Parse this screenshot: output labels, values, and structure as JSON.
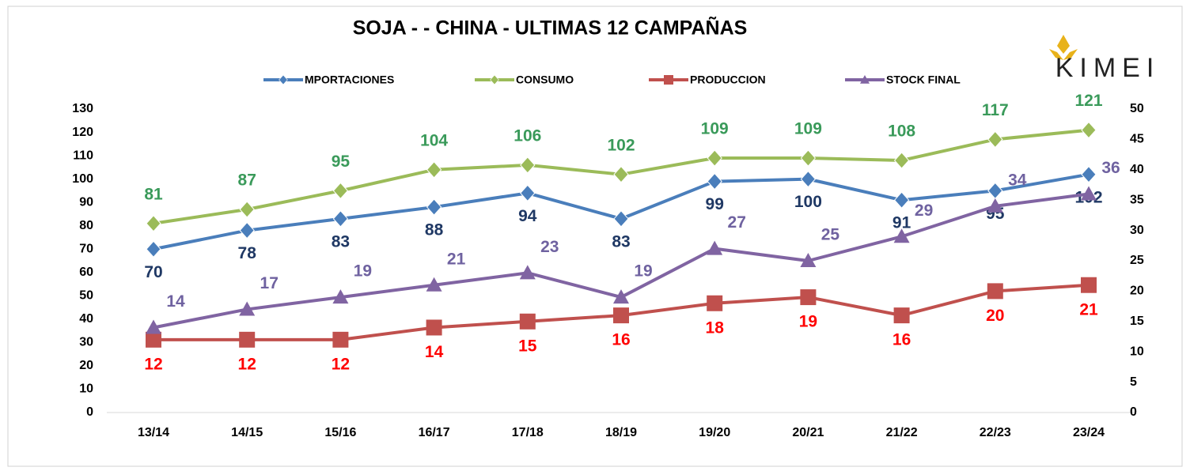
{
  "chart_data": {
    "type": "line",
    "title": "SOJA -  - CHINA - ULTIMAS 12 CAMPAÑAS",
    "logo": "KIMEI",
    "categories": [
      "13/14",
      "14/15",
      "15/16",
      "16/17",
      "17/18",
      "18/19",
      "19/20",
      "20/21",
      "21/22",
      "22/23",
      "23/24"
    ],
    "series": [
      {
        "name": "MPORTACIONES",
        "color": "#4a7ebb",
        "label_color": "#1f3864",
        "marker": "diamond",
        "values": [
          70,
          78,
          83,
          88,
          94,
          83,
          99,
          100,
          91,
          95,
          102
        ]
      },
      {
        "name": "CONSUMO",
        "color": "#9bbb59",
        "label_color": "#3a9a5a",
        "marker": "diamond",
        "values": [
          81,
          87,
          95,
          104,
          106,
          102,
          109,
          109,
          108,
          117,
          121
        ]
      },
      {
        "name": "PRODUCCION",
        "color": "#c0504d",
        "label_color": "#ff0000",
        "marker": "square",
        "axis": "y2",
        "values": [
          12,
          12,
          12,
          14,
          15,
          16,
          18,
          19,
          16,
          20,
          21
        ]
      },
      {
        "name": "STOCK FINAL",
        "color": "#8064a2",
        "label_color": "#6f62a0",
        "marker": "triangle",
        "axis": "y2",
        "values": [
          14,
          17,
          19,
          21,
          23,
          19,
          27,
          25,
          29,
          34,
          36
        ]
      }
    ],
    "ylim": [
      0,
      130
    ],
    "yticks": [
      0,
      10,
      20,
      30,
      40,
      50,
      60,
      70,
      80,
      90,
      100,
      110,
      120,
      130
    ],
    "y2lim": [
      0,
      50
    ],
    "y2ticks": [
      0,
      5,
      10,
      15,
      20,
      25,
      30,
      35,
      40,
      45,
      50
    ],
    "grid": false,
    "legend": "top"
  }
}
